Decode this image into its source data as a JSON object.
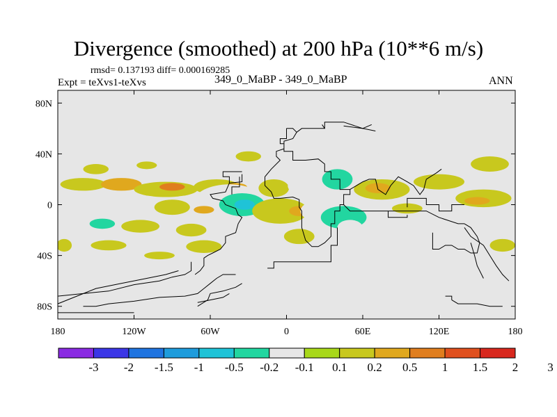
{
  "chart_data": {
    "type": "heatmap",
    "title": "Divergence (smoothed) at 200 hPa (10**6 m/s)",
    "stats_text": "rmsd= 0.137193 diff= 0.000169285",
    "expt_text": "Expt = teXvs1-teXvs",
    "cases_text": "349_0_MaBP - 349_0_MaBP",
    "season_text": "ANN",
    "xlim": [
      -180,
      180
    ],
    "ylim": [
      -90,
      90
    ],
    "x_ticks": [
      {
        "value": -180,
        "label": "180"
      },
      {
        "value": -120,
        "label": "120W"
      },
      {
        "value": -60,
        "label": "60W"
      },
      {
        "value": 0,
        "label": "0"
      },
      {
        "value": 60,
        "label": "60E"
      },
      {
        "value": 120,
        "label": "120E"
      },
      {
        "value": 180,
        "label": "180"
      }
    ],
    "y_ticks": [
      {
        "value": 80,
        "label": "80N"
      },
      {
        "value": 40,
        "label": "40N"
      },
      {
        "value": 0,
        "label": "0"
      },
      {
        "value": -40,
        "label": "40S"
      },
      {
        "value": -80,
        "label": "80S"
      }
    ],
    "colorbar": {
      "colors": [
        "#8a2be2",
        "#3b36e6",
        "#1f74e0",
        "#1e9cdc",
        "#1fc3d7",
        "#22d6a0",
        "#e6e6e6",
        "#a8d81a",
        "#c8c81e",
        "#e0a81e",
        "#e07e1e",
        "#e0501e",
        "#d8281e"
      ],
      "labels": [
        "-3",
        "-2",
        "-1.5",
        "-1",
        "-0.5",
        "-0.2",
        "-0.1",
        "0.1",
        "0.2",
        "0.5",
        "1",
        "1.5",
        "2",
        "3"
      ]
    },
    "regions": [
      {
        "lon": -150,
        "lat": 28,
        "rlon": 10,
        "rlat": 4,
        "level": 0.15
      },
      {
        "lon": -110,
        "lat": 31,
        "rlon": 8,
        "rlat": 3,
        "level": 0.15
      },
      {
        "lon": -53,
        "lat": 40,
        "rlon": 14,
        "rlat": 4,
        "level": -0.15
      },
      {
        "lon": -30,
        "lat": 38,
        "rlon": 10,
        "rlat": 4,
        "level": 0.15
      },
      {
        "lon": 35,
        "lat": 40,
        "rlon": 18,
        "rlat": 5,
        "level": -0.15
      },
      {
        "lon": 95,
        "lat": 37,
        "rlon": 28,
        "rlat": 6,
        "level": -0.15
      },
      {
        "lon": 160,
        "lat": 32,
        "rlon": 15,
        "rlat": 6,
        "level": 0.15
      },
      {
        "lon": -160,
        "lat": 16,
        "rlon": 18,
        "rlat": 5,
        "level": 0.15
      },
      {
        "lon": -130,
        "lat": 16,
        "rlon": 16,
        "rlat": 5,
        "level": 0.3
      },
      {
        "lon": -95,
        "lat": 12,
        "rlon": 25,
        "rlat": 6,
        "level": 0.15
      },
      {
        "lon": -90,
        "lat": 14,
        "rlon": 10,
        "rlat": 3,
        "level": 0.6
      },
      {
        "lon": -55,
        "lat": 14,
        "rlon": 18,
        "rlat": 6,
        "level": 0.15
      },
      {
        "lon": -40,
        "lat": 14,
        "rlon": 9,
        "rlat": 3,
        "level": 0.3
      },
      {
        "lon": -10,
        "lat": 13,
        "rlon": 12,
        "rlat": 7,
        "level": 0.15
      },
      {
        "lon": 15,
        "lat": 15,
        "rlon": 14,
        "rlat": 8,
        "level": -0.15
      },
      {
        "lon": 40,
        "lat": 20,
        "rlon": 12,
        "rlat": 8,
        "level": -0.3
      },
      {
        "lon": 75,
        "lat": 12,
        "rlon": 22,
        "rlat": 8,
        "level": 0.15
      },
      {
        "lon": 72,
        "lat": 13,
        "rlon": 10,
        "rlat": 4,
        "level": 0.3
      },
      {
        "lon": 120,
        "lat": 18,
        "rlon": 20,
        "rlat": 6,
        "level": 0.15
      },
      {
        "lon": 155,
        "lat": 5,
        "rlon": 22,
        "rlat": 7,
        "level": 0.15
      },
      {
        "lon": 150,
        "lat": 3,
        "rlon": 10,
        "rlat": 3,
        "level": 0.3
      },
      {
        "lon": -45,
        "lat": 2,
        "rlon": 28,
        "rlat": 14,
        "level": -0.15
      },
      {
        "lon": -35,
        "lat": 0,
        "rlon": 18,
        "rlat": 9,
        "level": -0.3
      },
      {
        "lon": -33,
        "lat": 0,
        "rlon": 8,
        "rlat": 4,
        "level": -0.6
      },
      {
        "lon": -90,
        "lat": -2,
        "rlon": 14,
        "rlat": 6,
        "level": 0.15
      },
      {
        "lon": -65,
        "lat": -4,
        "rlon": 8,
        "rlat": 3,
        "level": 0.3
      },
      {
        "lon": -5,
        "lat": -5,
        "rlon": 22,
        "rlat": 10,
        "level": 0.15
      },
      {
        "lon": 10,
        "lat": -5,
        "rlon": 8,
        "rlat": 4,
        "level": 0.3
      },
      {
        "lon": 25,
        "lat": -5,
        "rlon": 14,
        "rlat": 8,
        "level": -0.15
      },
      {
        "lon": 45,
        "lat": -10,
        "rlon": 18,
        "rlat": 9,
        "level": -0.3
      },
      {
        "lon": 50,
        "lat": -18,
        "rlon": 10,
        "rlat": 6,
        "level": -0.15
      },
      {
        "lon": 95,
        "lat": -5,
        "rlon": 30,
        "rlat": 10,
        "level": -0.15
      },
      {
        "lon": 95,
        "lat": -3,
        "rlon": 12,
        "rlat": 4,
        "level": 0.15
      },
      {
        "lon": -170,
        "lat": -12,
        "rlon": 10,
        "rlat": 6,
        "level": -0.15
      },
      {
        "lon": -150,
        "lat": -15,
        "rlon": 22,
        "rlat": 7,
        "level": -0.15
      },
      {
        "lon": -145,
        "lat": -15,
        "rlon": 10,
        "rlat": 4,
        "level": -0.3
      },
      {
        "lon": -115,
        "lat": -17,
        "rlon": 15,
        "rlat": 5,
        "level": 0.15
      },
      {
        "lon": -75,
        "lat": -20,
        "rlon": 12,
        "rlat": 5,
        "level": 0.15
      },
      {
        "lon": -20,
        "lat": -27,
        "rlon": 18,
        "rlat": 6,
        "level": -0.15
      },
      {
        "lon": 10,
        "lat": -25,
        "rlon": 12,
        "rlat": 6,
        "level": 0.15
      },
      {
        "lon": 75,
        "lat": -28,
        "rlon": 20,
        "rlat": 7,
        "level": -0.15
      },
      {
        "lon": 135,
        "lat": -30,
        "rlon": 15,
        "rlat": 8,
        "level": -0.15
      },
      {
        "lon": 170,
        "lat": -32,
        "rlon": 10,
        "rlat": 5,
        "level": 0.15
      },
      {
        "lon": -175,
        "lat": -32,
        "rlon": 6,
        "rlat": 5,
        "level": 0.15
      },
      {
        "lon": -140,
        "lat": -32,
        "rlon": 14,
        "rlat": 4,
        "level": 0.15
      },
      {
        "lon": -105,
        "lat": -33,
        "rlon": 12,
        "rlat": 4,
        "level": -0.15
      },
      {
        "lon": -65,
        "lat": -33,
        "rlon": 14,
        "rlat": 5,
        "level": 0.15
      },
      {
        "lon": -100,
        "lat": -40,
        "rlon": 12,
        "rlat": 3,
        "level": 0.15
      }
    ],
    "coastlines": [
      [
        [
          0,
          60
        ],
        [
          0,
          52
        ],
        [
          -5,
          52
        ],
        [
          -5,
          48
        ],
        [
          -2,
          48
        ],
        [
          -2,
          42
        ],
        [
          5,
          42
        ],
        [
          5,
          35
        ],
        [
          15,
          35
        ],
        [
          25,
          36
        ],
        [
          30,
          32
        ],
        [
          30,
          26
        ],
        [
          35,
          26
        ],
        [
          35,
          20
        ],
        [
          42,
          20
        ],
        [
          42,
          12
        ],
        [
          50,
          12
        ],
        [
          50,
          8
        ],
        [
          45,
          8
        ],
        [
          45,
          0
        ],
        [
          42,
          0
        ],
        [
          42,
          -5
        ],
        [
          38,
          -5
        ],
        [
          38,
          -15
        ],
        [
          35,
          -15
        ],
        [
          35,
          -25
        ],
        [
          30,
          -30
        ],
        [
          25,
          -33
        ],
        [
          20,
          -33
        ],
        [
          15,
          -28
        ],
        [
          12,
          -18
        ],
        [
          12,
          -5
        ],
        [
          10,
          -2
        ],
        [
          10,
          4
        ],
        [
          5,
          6
        ],
        [
          -5,
          5
        ],
        [
          -10,
          5
        ],
        [
          -12,
          10
        ],
        [
          -17,
          15
        ],
        [
          -17,
          22
        ],
        [
          -12,
          28
        ],
        [
          -5,
          35
        ],
        [
          -8,
          38
        ],
        [
          -8,
          42
        ],
        [
          -2,
          44
        ],
        [
          -2,
          50
        ],
        [
          5,
          52
        ],
        [
          8,
          57
        ],
        [
          5,
          60
        ],
        [
          0,
          60
        ]
      ],
      [
        [
          28,
          63
        ],
        [
          30,
          60
        ],
        [
          20,
          60
        ],
        [
          12,
          60
        ],
        [
          8,
          57
        ]
      ],
      [
        [
          30,
          60
        ],
        [
          30,
          65
        ],
        [
          45,
          65
        ],
        [
          60,
          60
        ],
        [
          70,
          58
        ]
      ],
      [
        [
          45,
          62
        ],
        [
          60,
          60
        ],
        [
          67,
          63
        ]
      ],
      [
        [
          -45,
          17
        ],
        [
          -48,
          10
        ],
        [
          -60,
          8
        ],
        [
          -58,
          5
        ],
        [
          -50,
          3
        ],
        [
          -48,
          0
        ],
        [
          -40,
          -3
        ],
        [
          -38,
          -8
        ],
        [
          -35,
          -10
        ],
        [
          -38,
          -15
        ],
        [
          -40,
          -22
        ],
        [
          -48,
          -25
        ],
        [
          -48,
          -30
        ],
        [
          -52,
          -35
        ],
        [
          -58,
          -38
        ],
        [
          -62,
          -40
        ],
        [
          -65,
          -42
        ],
        [
          -65,
          -48
        ],
        [
          -68,
          -52
        ],
        [
          -72,
          -55
        ]
      ],
      [
        [
          -35,
          24
        ],
        [
          -35,
          18
        ],
        [
          -45,
          17
        ],
        [
          -45,
          22
        ],
        [
          -50,
          22
        ],
        [
          -50,
          26
        ],
        [
          -35,
          26
        ]
      ],
      [
        [
          -37,
          22
        ],
        [
          -37,
          14
        ],
        [
          -43,
          14
        ],
        [
          -43,
          8
        ]
      ],
      [
        [
          50,
          12
        ],
        [
          55,
          15
        ],
        [
          60,
          18
        ],
        [
          65,
          20
        ],
        [
          70,
          20
        ],
        [
          72,
          12
        ],
        [
          78,
          8
        ],
        [
          82,
          15
        ],
        [
          88,
          22
        ],
        [
          95,
          18
        ],
        [
          100,
          15
        ],
        [
          105,
          8
        ],
        [
          108,
          12
        ],
        [
          110,
          20
        ],
        [
          118,
          25
        ],
        [
          122,
          28
        ]
      ],
      [
        [
          45,
          0
        ],
        [
          50,
          -5
        ],
        [
          60,
          -5
        ],
        [
          70,
          -5
        ],
        [
          80,
          -5
        ]
      ],
      [
        [
          80,
          -5
        ],
        [
          95,
          -5
        ],
        [
          110,
          -5
        ],
        [
          120,
          -10
        ],
        [
          135,
          -15
        ],
        [
          140,
          -15
        ]
      ],
      [
        [
          80,
          -5
        ],
        [
          80,
          -10
        ],
        [
          95,
          -10
        ],
        [
          95,
          -8
        ]
      ],
      [
        [
          95,
          -2
        ],
        [
          95,
          5
        ],
        [
          110,
          5
        ],
        [
          110,
          0
        ],
        [
          120,
          0
        ],
        [
          120,
          -5
        ],
        [
          130,
          -5
        ],
        [
          130,
          0
        ],
        [
          140,
          0
        ]
      ],
      [
        [
          40,
          -18
        ],
        [
          40,
          -32
        ],
        [
          35,
          -32
        ],
        [
          35,
          -45
        ],
        [
          -10,
          -45
        ],
        [
          -10,
          -50
        ],
        [
          -15,
          -50
        ]
      ],
      [
        [
          115,
          -22
        ],
        [
          115,
          -35
        ],
        [
          120,
          -35
        ],
        [
          125,
          -32
        ],
        [
          130,
          -32
        ],
        [
          135,
          -35
        ],
        [
          140,
          -35
        ],
        [
          145,
          -38
        ],
        [
          150,
          -38
        ],
        [
          152,
          -30
        ],
        [
          150,
          -25
        ],
        [
          145,
          -18
        ],
        [
          140,
          -15
        ]
      ],
      [
        [
          140,
          -18
        ],
        [
          145,
          -25
        ],
        [
          155,
          -32
        ],
        [
          160,
          -40
        ],
        [
          165,
          -48
        ],
        [
          170,
          -55
        ],
        [
          175,
          -60
        ]
      ],
      [
        [
          145,
          -30
        ],
        [
          148,
          -40
        ],
        [
          150,
          -48
        ],
        [
          155,
          -58
        ]
      ],
      [
        [
          -75,
          -45
        ],
        [
          -75,
          -52
        ],
        [
          -80,
          -55
        ],
        [
          -90,
          -57
        ],
        [
          -100,
          -60
        ],
        [
          -120,
          -63
        ],
        [
          -140,
          -68
        ],
        [
          -160,
          -70
        ],
        [
          -180,
          -72
        ]
      ],
      [
        [
          -85,
          -52
        ],
        [
          -95,
          -55
        ],
        [
          -110,
          -58
        ],
        [
          -130,
          -62
        ],
        [
          -150,
          -66
        ],
        [
          -165,
          -72
        ],
        [
          -180,
          -78
        ]
      ],
      [
        [
          -40,
          -55
        ],
        [
          -50,
          -55
        ],
        [
          -55,
          -58
        ],
        [
          -60,
          -62
        ],
        [
          -65,
          -66
        ],
        [
          -70,
          -70
        ],
        [
          -80,
          -72
        ],
        [
          -100,
          -73
        ],
        [
          -120,
          -76
        ],
        [
          -140,
          -78
        ],
        [
          -150,
          -80
        ],
        [
          -160,
          -80
        ]
      ],
      [
        [
          -35,
          -62
        ],
        [
          -40,
          -65
        ],
        [
          -50,
          -68
        ],
        [
          -60,
          -70
        ],
        [
          -62,
          -75
        ],
        [
          -70,
          -80
        ]
      ],
      [
        [
          -45,
          -70
        ],
        [
          -50,
          -73
        ],
        [
          -60,
          -75
        ],
        [
          -70,
          -77
        ]
      ],
      [
        [
          130,
          -75
        ],
        [
          135,
          -78
        ],
        [
          150,
          -78
        ],
        [
          160,
          -80
        ],
        [
          170,
          -80
        ]
      ],
      [
        [
          125,
          -72
        ],
        [
          130,
          -72
        ],
        [
          130,
          -75
        ]
      ],
      [
        [
          -180,
          -85
        ],
        [
          -150,
          -85
        ],
        [
          -120,
          -85
        ]
      ]
    ]
  }
}
